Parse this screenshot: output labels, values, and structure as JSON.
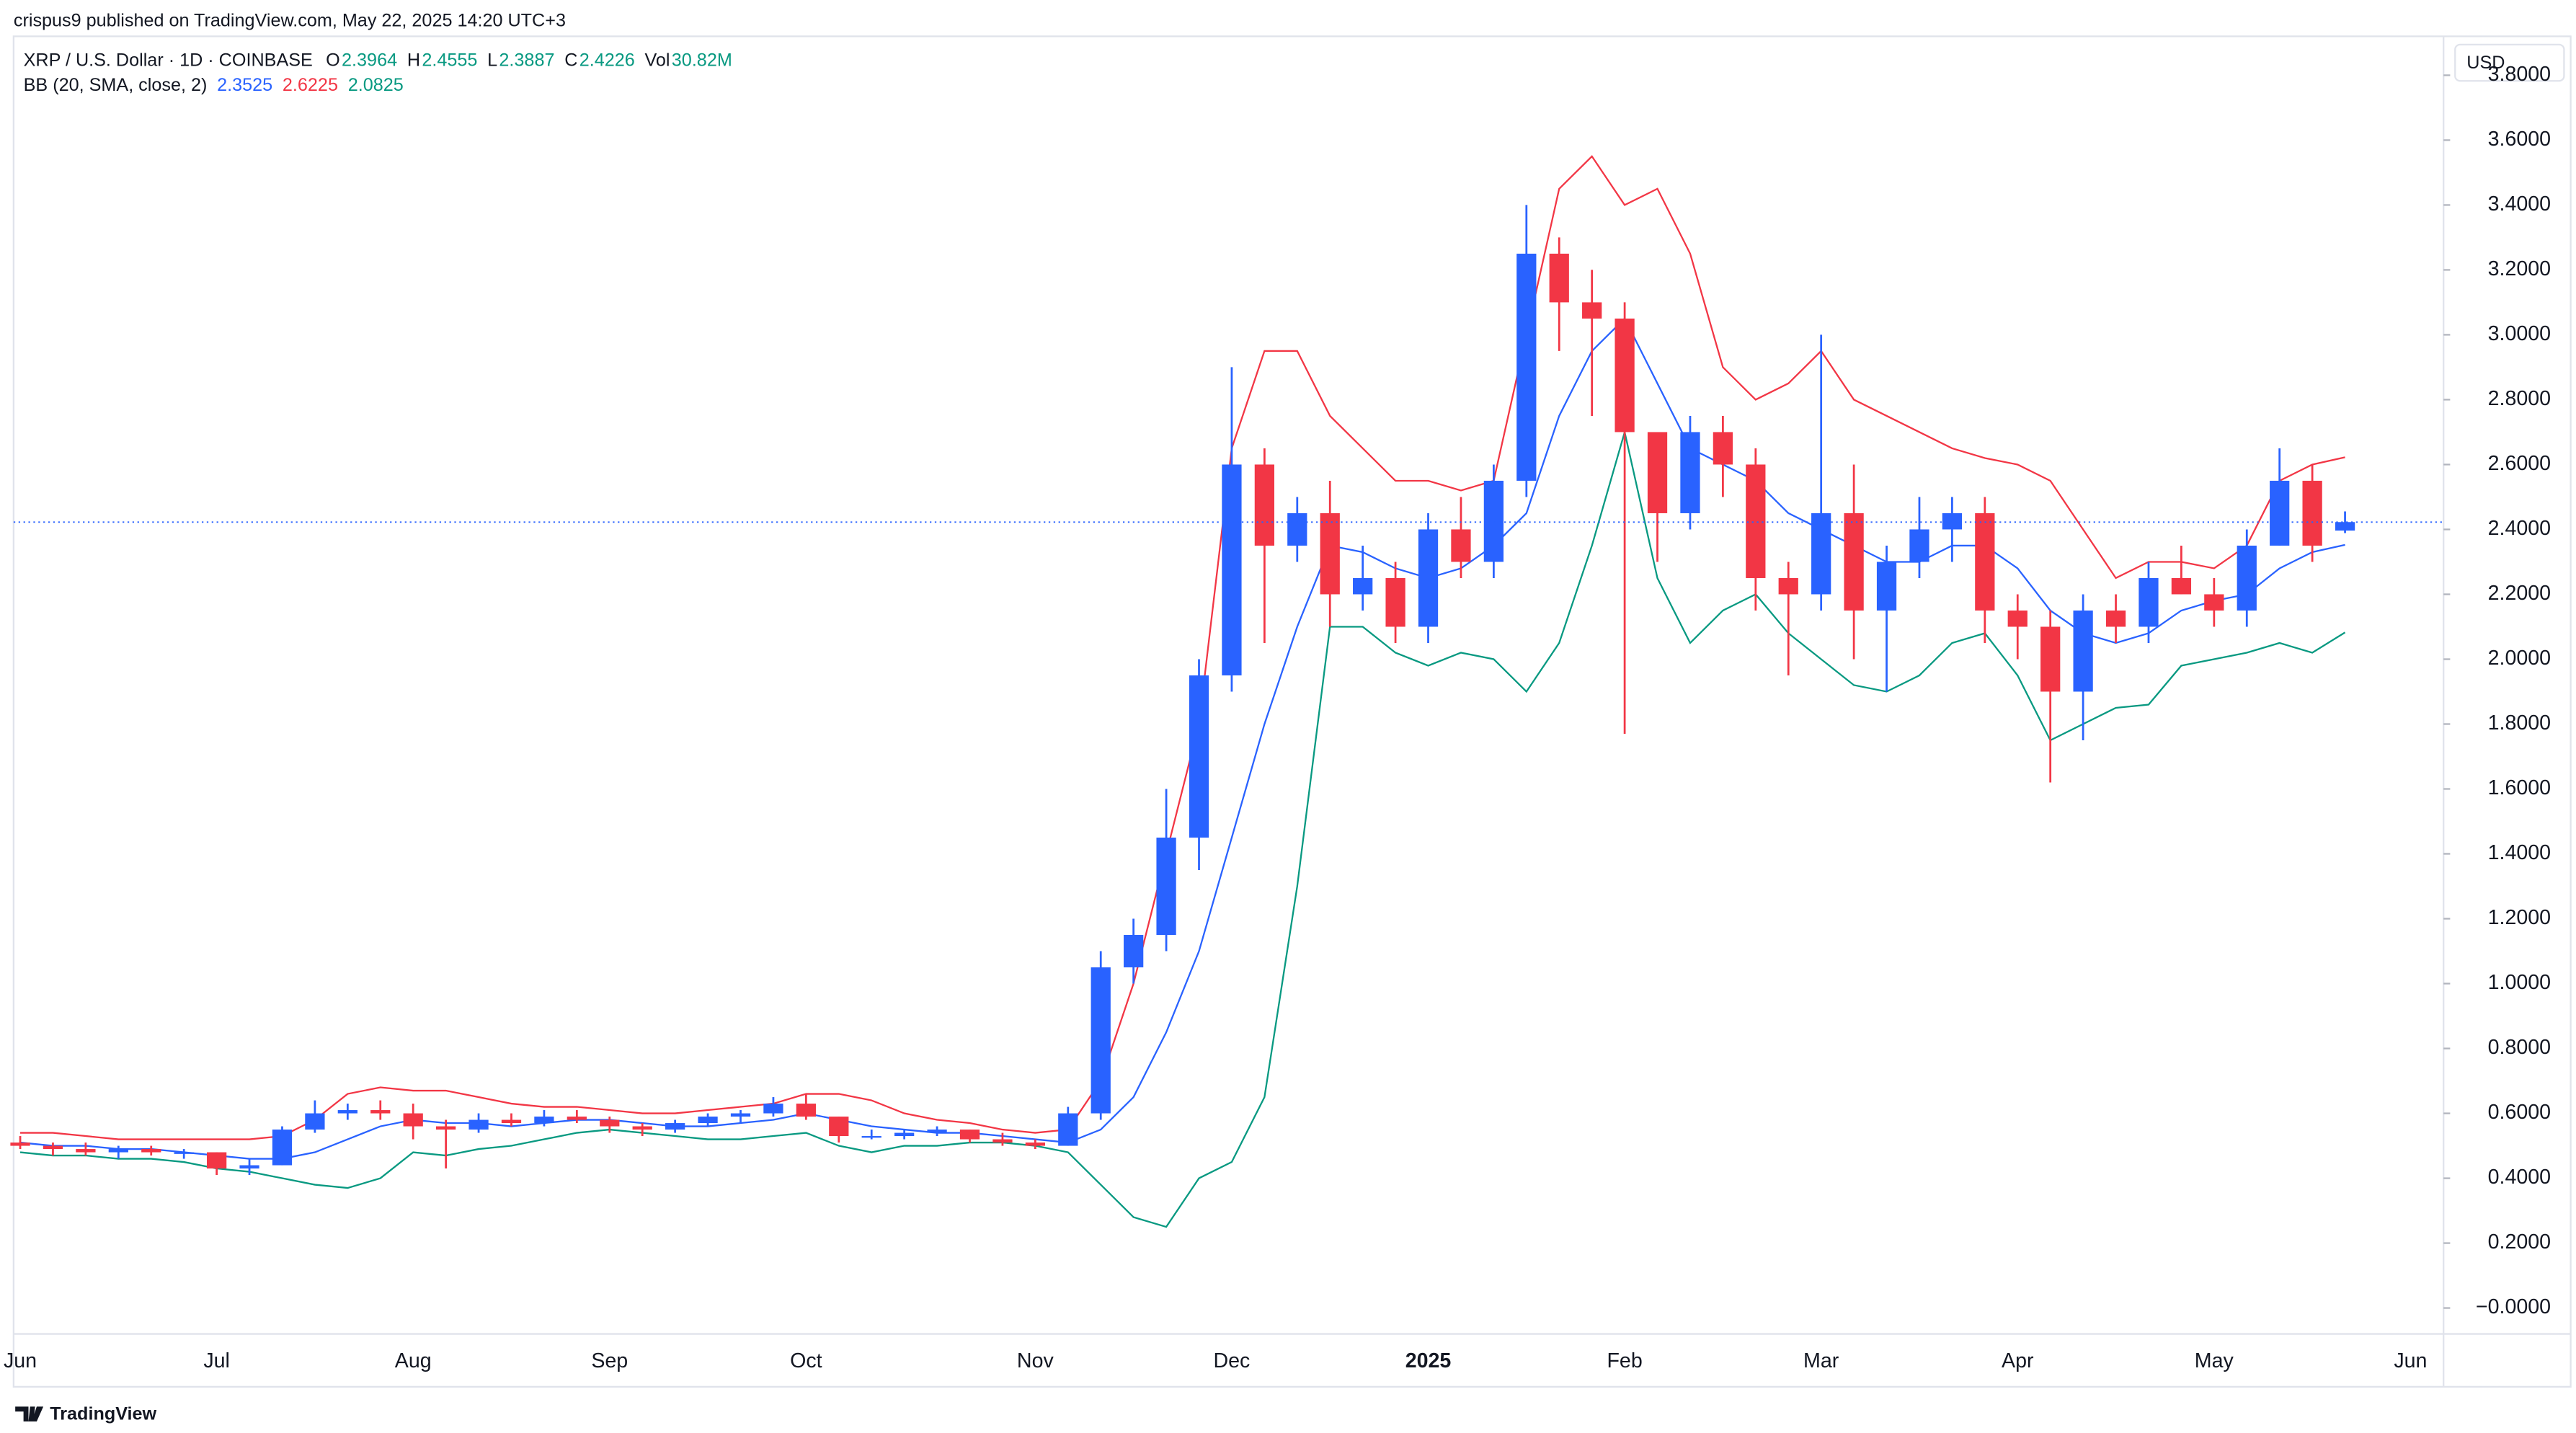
{
  "chart_data": {
    "type": "candlestick",
    "publisher": "crispus9 published on TradingView.com, May 22, 2025 14:20 UTC+3",
    "symbol": "XRP / U.S. Dollar · 1D · COINBASE",
    "ohlc_labels": [
      "O",
      "H",
      "L",
      "C"
    ],
    "volume_label": "Vol",
    "volume": "30.82M",
    "indicator": "BB (20, SMA, close, 2)",
    "currency": "USD",
    "footer": "TradingView",
    "up_color": "#2962ff",
    "down_color": "#f23645",
    "categories": [
      "Jun",
      null,
      null,
      null,
      null,
      null,
      "Jul",
      null,
      null,
      null,
      null,
      null,
      "Aug",
      null,
      null,
      null,
      null,
      null,
      "Sep",
      null,
      null,
      null,
      null,
      null,
      "Oct",
      null,
      null,
      null,
      null,
      null,
      null,
      "Nov",
      null,
      null,
      null,
      null,
      null,
      "Dec",
      null,
      null,
      null,
      null,
      null,
      "2025",
      null,
      null,
      null,
      null,
      null,
      "Feb",
      null,
      null,
      null,
      null,
      null,
      "Mar",
      null,
      null,
      null,
      null,
      null,
      "Apr",
      null,
      null,
      null,
      null,
      null,
      "May",
      null,
      null,
      null,
      null,
      null,
      "Jun"
    ],
    "open": [
      0.51,
      0.5,
      0.49,
      0.48,
      0.49,
      0.48,
      0.48,
      0.43,
      0.44,
      0.55,
      0.6,
      0.61,
      0.6,
      0.56,
      0.55,
      0.58,
      0.57,
      0.59,
      0.58,
      0.56,
      0.55,
      0.57,
      0.59,
      0.6,
      0.63,
      0.59,
      0.53,
      0.53,
      0.54,
      0.55,
      0.52,
      0.51,
      0.5,
      0.6,
      1.05,
      1.15,
      1.45,
      1.95,
      2.6,
      2.35,
      2.45,
      2.2,
      2.25,
      2.1,
      2.4,
      2.3,
      2.55,
      3.25,
      3.1,
      3.05,
      2.7,
      2.45,
      2.7,
      2.6,
      2.25,
      2.2,
      2.45,
      2.15,
      2.3,
      2.4,
      2.45,
      2.15,
      2.1,
      1.9,
      2.15,
      2.1,
      2.25,
      2.2,
      2.15,
      2.35,
      2.55,
      2.3964,
      null,
      null
    ],
    "high": [
      0.53,
      0.51,
      0.51,
      0.5,
      0.5,
      0.49,
      0.48,
      0.46,
      0.56,
      0.64,
      0.63,
      0.64,
      0.63,
      0.58,
      0.6,
      0.6,
      0.61,
      0.61,
      0.59,
      0.57,
      0.58,
      0.6,
      0.61,
      0.65,
      0.66,
      0.59,
      0.55,
      0.55,
      0.56,
      0.55,
      0.54,
      0.52,
      0.62,
      1.1,
      1.2,
      1.6,
      2.0,
      2.9,
      2.65,
      2.5,
      2.55,
      2.35,
      2.3,
      2.45,
      2.5,
      2.6,
      3.4,
      3.3,
      3.2,
      3.1,
      2.7,
      2.75,
      2.75,
      2.65,
      2.3,
      3.0,
      2.6,
      2.35,
      2.5,
      2.5,
      2.5,
      2.2,
      2.15,
      2.2,
      2.2,
      2.3,
      2.35,
      2.25,
      2.4,
      2.65,
      2.6,
      2.4555,
      null,
      null
    ],
    "low": [
      0.49,
      0.47,
      0.47,
      0.46,
      0.47,
      0.46,
      0.41,
      0.41,
      0.44,
      0.54,
      0.58,
      0.58,
      0.52,
      0.43,
      0.54,
      0.56,
      0.56,
      0.57,
      0.54,
      0.53,
      0.54,
      0.56,
      0.57,
      0.59,
      0.58,
      0.51,
      0.52,
      0.52,
      0.53,
      0.51,
      0.5,
      0.49,
      0.5,
      0.58,
      1.0,
      1.1,
      1.35,
      1.9,
      2.05,
      2.3,
      2.1,
      2.15,
      2.05,
      2.05,
      2.25,
      2.25,
      2.5,
      2.95,
      2.75,
      1.77,
      2.3,
      2.4,
      2.5,
      2.15,
      1.95,
      2.15,
      2.0,
      1.9,
      2.25,
      2.3,
      2.05,
      2.0,
      1.62,
      1.75,
      2.05,
      2.05,
      2.2,
      2.1,
      2.1,
      2.35,
      2.3,
      2.3887,
      null,
      null
    ],
    "close": [
      0.5,
      0.49,
      0.48,
      0.49,
      0.48,
      0.48,
      0.43,
      0.44,
      0.55,
      0.6,
      0.61,
      0.6,
      0.56,
      0.55,
      0.58,
      0.57,
      0.59,
      0.58,
      0.56,
      0.55,
      0.57,
      0.59,
      0.6,
      0.63,
      0.59,
      0.53,
      0.53,
      0.54,
      0.55,
      0.52,
      0.51,
      0.5,
      0.6,
      1.05,
      1.15,
      1.45,
      1.95,
      2.6,
      2.35,
      2.45,
      2.2,
      2.25,
      2.1,
      2.4,
      2.3,
      2.55,
      3.25,
      3.1,
      3.05,
      2.7,
      2.45,
      2.7,
      2.6,
      2.25,
      2.2,
      2.45,
      2.15,
      2.3,
      2.4,
      2.45,
      2.15,
      2.1,
      1.9,
      2.15,
      2.1,
      2.25,
      2.2,
      2.15,
      2.35,
      2.55,
      2.35,
      2.4226,
      null,
      null
    ],
    "series": [
      {
        "color": "#2962ff",
        "values": [
          0.51,
          0.5,
          0.5,
          0.49,
          0.49,
          0.48,
          0.47,
          0.46,
          0.46,
          0.48,
          0.52,
          0.56,
          0.58,
          0.57,
          0.57,
          0.56,
          0.57,
          0.58,
          0.58,
          0.57,
          0.56,
          0.56,
          0.57,
          0.58,
          0.6,
          0.58,
          0.56,
          0.55,
          0.54,
          0.54,
          0.53,
          0.52,
          0.51,
          0.55,
          0.65,
          0.85,
          1.1,
          1.45,
          1.8,
          2.1,
          2.35,
          2.33,
          2.28,
          2.25,
          2.28,
          2.35,
          2.45,
          2.75,
          2.95,
          3.05,
          2.85,
          2.65,
          2.6,
          2.55,
          2.45,
          2.4,
          2.35,
          2.3,
          2.3,
          2.35,
          2.35,
          2.28,
          2.15,
          2.08,
          2.05,
          2.08,
          2.15,
          2.18,
          2.2,
          2.28,
          2.33,
          2.3525,
          null,
          null
        ]
      },
      {
        "color": "#f23645",
        "values": [
          0.54,
          0.54,
          0.53,
          0.52,
          0.52,
          0.52,
          0.52,
          0.52,
          0.53,
          0.58,
          0.66,
          0.68,
          0.67,
          0.67,
          0.65,
          0.63,
          0.62,
          0.62,
          0.61,
          0.6,
          0.6,
          0.61,
          0.62,
          0.63,
          0.66,
          0.66,
          0.64,
          0.6,
          0.58,
          0.57,
          0.55,
          0.54,
          0.55,
          0.7,
          1.0,
          1.4,
          1.8,
          2.65,
          2.95,
          2.95,
          2.75,
          2.65,
          2.55,
          2.55,
          2.52,
          2.55,
          3.0,
          3.45,
          3.55,
          3.4,
          3.45,
          3.25,
          2.9,
          2.8,
          2.85,
          2.95,
          2.8,
          2.75,
          2.7,
          2.65,
          2.62,
          2.6,
          2.55,
          2.4,
          2.25,
          2.3,
          2.3,
          2.28,
          2.35,
          2.55,
          2.6,
          2.6225,
          null,
          null
        ]
      },
      {
        "color": "#089981",
        "values": [
          0.48,
          0.47,
          0.47,
          0.46,
          0.46,
          0.45,
          0.43,
          0.42,
          0.4,
          0.38,
          0.37,
          0.4,
          0.48,
          0.47,
          0.49,
          0.5,
          0.52,
          0.54,
          0.55,
          0.54,
          0.53,
          0.52,
          0.52,
          0.53,
          0.54,
          0.5,
          0.48,
          0.5,
          0.5,
          0.51,
          0.51,
          0.5,
          0.48,
          0.38,
          0.28,
          0.25,
          0.4,
          0.45,
          0.65,
          1.3,
          2.1,
          2.1,
          2.02,
          1.98,
          2.02,
          2.0,
          1.9,
          2.05,
          2.35,
          2.7,
          2.25,
          2.05,
          2.15,
          2.2,
          2.08,
          2.0,
          1.92,
          1.9,
          1.95,
          2.05,
          2.08,
          1.95,
          1.75,
          1.8,
          1.85,
          1.86,
          1.98,
          2.0,
          2.02,
          2.05,
          2.02,
          2.0825,
          null,
          null
        ]
      }
    ],
    "ylim": [
      -0.08,
      3.92
    ],
    "yticks": [
      {
        "value": 0,
        "label": "−0.0000"
      },
      {
        "value": 0.2,
        "label": "0.2000"
      },
      {
        "value": 0.4,
        "label": "0.4000"
      },
      {
        "value": 0.6,
        "label": "0.6000"
      },
      {
        "value": 0.8,
        "label": "0.8000"
      },
      {
        "value": 1,
        "label": "1.0000"
      },
      {
        "value": 1.2,
        "label": "1.2000"
      },
      {
        "value": 1.4,
        "label": "1.4000"
      },
      {
        "value": 1.6,
        "label": "1.6000"
      },
      {
        "value": 1.8,
        "label": "1.8000"
      },
      {
        "value": 2,
        "label": "2.0000"
      },
      {
        "value": 2.2,
        "label": "2.2000"
      },
      {
        "value": 2.4,
        "label": "2.4000"
      },
      {
        "value": 2.6,
        "label": "2.6000"
      },
      {
        "value": 2.8,
        "label": "2.8000"
      },
      {
        "value": 3,
        "label": "3.0000"
      },
      {
        "value": 3.2,
        "label": "3.2000"
      },
      {
        "value": 3.4,
        "label": "3.4000"
      },
      {
        "value": 3.6,
        "label": "3.6000"
      },
      {
        "value": 3.8,
        "label": "3.8000"
      }
    ],
    "grid": false
  }
}
